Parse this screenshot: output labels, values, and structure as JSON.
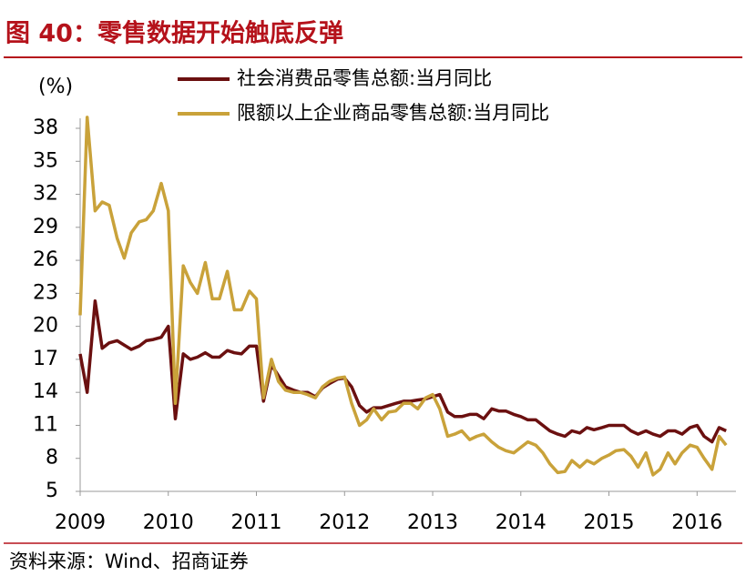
{
  "chart_data": {
    "type": "line",
    "title": "图 40：零售数据开始触底反弹",
    "y_label": "(%)",
    "source": "资料来源：Wind、招商证券",
    "x": [
      2009,
      2009.08,
      2009.17,
      2009.25,
      2009.33,
      2009.42,
      2009.5,
      2009.58,
      2009.67,
      2009.75,
      2009.83,
      2009.92,
      2010,
      2010.08,
      2010.17,
      2010.25,
      2010.33,
      2010.42,
      2010.5,
      2010.58,
      2010.67,
      2010.75,
      2010.83,
      2010.92,
      2011,
      2011.08,
      2011.17,
      2011.25,
      2011.33,
      2011.42,
      2011.5,
      2011.58,
      2011.67,
      2011.75,
      2011.83,
      2011.92,
      2012,
      2012.08,
      2012.17,
      2012.25,
      2012.33,
      2012.42,
      2012.5,
      2012.58,
      2012.67,
      2012.75,
      2012.83,
      2012.92,
      2013,
      2013.08,
      2013.17,
      2013.25,
      2013.33,
      2013.42,
      2013.5,
      2013.58,
      2013.67,
      2013.75,
      2013.83,
      2013.92,
      2014,
      2014.08,
      2014.17,
      2014.25,
      2014.33,
      2014.42,
      2014.5,
      2014.58,
      2014.67,
      2014.75,
      2014.83,
      2014.92,
      2015,
      2015.08,
      2015.17,
      2015.25,
      2015.33,
      2015.42,
      2015.5,
      2015.58,
      2015.67,
      2015.75,
      2015.83,
      2015.92,
      2016,
      2016.08,
      2016.17,
      2016.25,
      2016.33
    ],
    "series": [
      {
        "name": "社会消费品零售总额:当月同比",
        "color": "#6b1010",
        "values": [
          17.5,
          14.0,
          22.3,
          18.0,
          18.5,
          18.7,
          18.3,
          17.9,
          18.2,
          18.7,
          18.8,
          19.0,
          20.0,
          11.6,
          17.5,
          17.0,
          17.2,
          17.6,
          17.2,
          17.2,
          17.8,
          17.6,
          17.5,
          18.2,
          18.2,
          13.2,
          16.5,
          15.5,
          14.5,
          14.2,
          14.0,
          14.0,
          13.6,
          14.4,
          14.8,
          15.2,
          15.3,
          14.5,
          12.8,
          12.2,
          12.6,
          12.6,
          12.8,
          13.0,
          13.2,
          13.2,
          13.3,
          13.4,
          13.6,
          13.8,
          12.2,
          11.8,
          11.8,
          12.0,
          12.0,
          11.6,
          12.5,
          12.3,
          12.3,
          12.0,
          11.8,
          11.5,
          11.5,
          11.0,
          10.5,
          10.2,
          10.0,
          10.5,
          10.3,
          10.8,
          10.6,
          10.8,
          11.0,
          11.0,
          11.0,
          10.5,
          10.2,
          10.5,
          10.2,
          10.0,
          10.5,
          10.5,
          10.2,
          10.8,
          11.0,
          10.0,
          9.5,
          10.8,
          10.5
        ]
      },
      {
        "name": "限额以上企业商品零售总额:当月同比",
        "color": "#c9a23a",
        "values": [
          21.0,
          39.0,
          30.5,
          31.3,
          31.0,
          28.0,
          26.2,
          28.5,
          29.5,
          29.7,
          30.5,
          33.0,
          30.5,
          13.0,
          25.5,
          24.0,
          23.0,
          25.8,
          22.5,
          22.5,
          25.0,
          21.5,
          21.5,
          23.2,
          22.5,
          13.5,
          17.0,
          15.0,
          14.2,
          14.0,
          14.0,
          13.8,
          13.5,
          14.5,
          15.0,
          15.3,
          15.4,
          13.0,
          11.0,
          11.5,
          12.5,
          11.5,
          12.2,
          12.3,
          13.0,
          13.0,
          12.5,
          13.5,
          13.8,
          12.5,
          10.0,
          10.2,
          10.5,
          9.7,
          10.0,
          10.2,
          9.5,
          9.0,
          8.7,
          8.5,
          9.0,
          9.5,
          9.2,
          8.5,
          7.5,
          6.7,
          6.8,
          7.8,
          7.2,
          7.8,
          7.5,
          8.0,
          8.3,
          8.7,
          8.8,
          8.2,
          7.2,
          8.5,
          6.5,
          7.0,
          8.5,
          7.5,
          8.5,
          9.2,
          9.0,
          8.0,
          7.0,
          10.0,
          9.2
        ]
      }
    ],
    "xlim": [
      2009,
      2016.4
    ],
    "xticks": [
      2009,
      2010,
      2011,
      2012,
      2013,
      2014,
      2015,
      2016
    ],
    "ylim": [
      5,
      38
    ],
    "yticks": [
      5,
      8,
      11,
      14,
      17,
      20,
      23,
      26,
      29,
      32,
      35,
      38
    ],
    "grid": false
  }
}
